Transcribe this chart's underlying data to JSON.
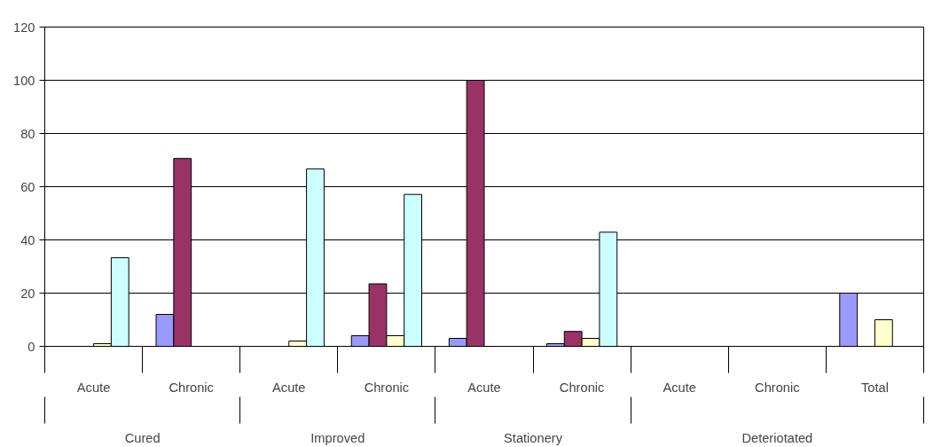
{
  "chart_data": {
    "type": "bar",
    "categories": [
      "Acute",
      "Chronic",
      "Acute",
      "Chronic",
      "Acute",
      "Chronic",
      "Acute",
      "Chronic",
      "Total"
    ],
    "series": [
      {
        "color": "#9999ff",
        "values": [
          null,
          12,
          null,
          4,
          3,
          1,
          null,
          null,
          20
        ]
      },
      {
        "color": "#993366",
        "values": [
          null,
          70.6,
          null,
          23.5,
          100,
          5.6,
          null,
          null,
          null
        ]
      },
      {
        "color": "#ffffcc",
        "values": [
          1,
          null,
          2,
          4,
          null,
          3,
          null,
          null,
          10
        ]
      },
      {
        "color": "#ccffff",
        "values": [
          33.3,
          null,
          66.7,
          57.1,
          null,
          42.9,
          null,
          null,
          null
        ]
      }
    ],
    "annotations": [
      "Cured",
      "Improved",
      "Stationery",
      "Deteriotated"
    ],
    "ylim": [
      0,
      120
    ],
    "yticks": [
      0,
      20,
      40,
      60,
      80,
      100,
      120
    ],
    "grid": "y"
  }
}
